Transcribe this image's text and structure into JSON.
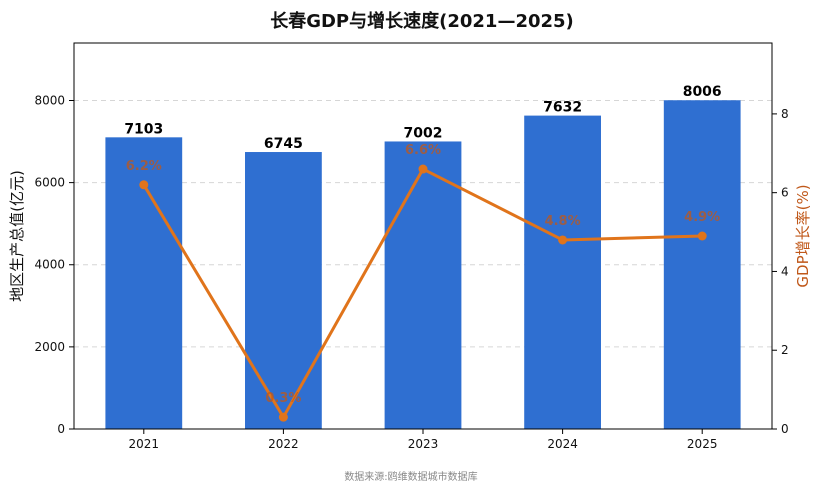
{
  "chart_data": {
    "type": "bar",
    "title": "长春GDP与增长速度(2021—2025)",
    "categories": [
      "2021",
      "2022",
      "2023",
      "2024",
      "2025"
    ],
    "series": [
      {
        "axis": "left",
        "type": "bar",
        "values": [
          7103,
          6745,
          7002,
          7632,
          8006
        ],
        "color": "#2f6fd1"
      },
      {
        "axis": "right",
        "type": "line",
        "values": [
          6.2,
          0.3,
          6.6,
          4.8,
          4.9
        ],
        "value_labels": [
          "6.2%",
          "0.3%",
          "6.6%",
          "4.8%",
          "4.9%"
        ],
        "color": "#e0741b"
      }
    ],
    "ylabel": "地区生产总值(亿元)",
    "ylabel_right": "GDP增长率(%)",
    "ylim": [
      0,
      9400
    ],
    "ylim_right": [
      0,
      9.8
    ],
    "yticks": [
      0,
      2000,
      4000,
      6000,
      8000
    ],
    "yticks_right": [
      0,
      2,
      4,
      6,
      8
    ],
    "grid": "horizontal-dashed",
    "footnote": "数据来源:鸥维数据城市数据库"
  }
}
